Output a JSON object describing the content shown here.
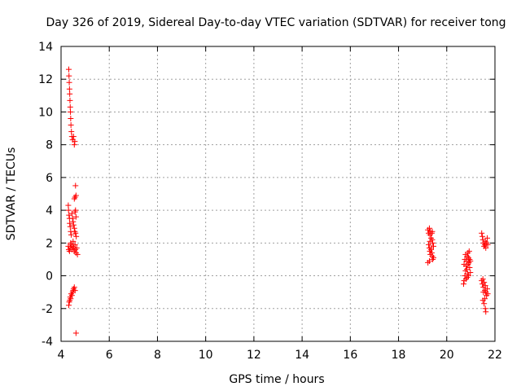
{
  "chart_data": {
    "type": "scatter",
    "title": "Day 326 of 2019, Sidereal Day-to-day VTEC variation (SDTVAR) for receiver tong",
    "xlabel": "GPS time / hours",
    "ylabel": "SDTVAR / TECUs",
    "xlim": [
      4,
      22
    ],
    "ylim": [
      -4,
      14
    ],
    "x_ticks": [
      4,
      6,
      8,
      10,
      12,
      14,
      16,
      18,
      20,
      22
    ],
    "y_ticks": [
      -4,
      -2,
      0,
      2,
      4,
      6,
      8,
      10,
      12,
      14
    ],
    "grid": true,
    "marker": "+",
    "marker_color": "#ff0000",
    "series": [
      {
        "name": "SDTVAR",
        "points": [
          [
            4.32,
            12.6
          ],
          [
            4.33,
            12.2
          ],
          [
            4.34,
            11.8
          ],
          [
            4.35,
            11.4
          ],
          [
            4.36,
            11.1
          ],
          [
            4.37,
            10.7
          ],
          [
            4.38,
            10.3
          ],
          [
            4.39,
            10.0
          ],
          [
            4.4,
            9.6
          ],
          [
            4.41,
            9.2
          ],
          [
            4.43,
            8.8
          ],
          [
            4.45,
            8.5
          ],
          [
            4.48,
            8.3
          ],
          [
            4.52,
            8.5
          ],
          [
            4.55,
            8.0
          ],
          [
            4.57,
            8.2
          ],
          [
            4.6,
            5.5
          ],
          [
            4.58,
            4.8
          ],
          [
            4.62,
            4.9
          ],
          [
            4.55,
            4.7
          ],
          [
            4.3,
            4.3
          ],
          [
            4.31,
            4.0
          ],
          [
            4.33,
            3.7
          ],
          [
            4.35,
            3.5
          ],
          [
            4.36,
            3.2
          ],
          [
            4.38,
            3.0
          ],
          [
            4.4,
            2.7
          ],
          [
            4.42,
            2.5
          ],
          [
            4.45,
            3.8
          ],
          [
            4.48,
            3.5
          ],
          [
            4.5,
            3.3
          ],
          [
            4.52,
            3.1
          ],
          [
            4.55,
            2.9
          ],
          [
            4.58,
            3.9
          ],
          [
            4.6,
            4.0
          ],
          [
            4.62,
            3.6
          ],
          [
            4.57,
            2.7
          ],
          [
            4.6,
            2.6
          ],
          [
            4.63,
            2.4
          ],
          [
            4.3,
            1.8
          ],
          [
            4.32,
            1.6
          ],
          [
            4.35,
            1.5
          ],
          [
            4.38,
            1.7
          ],
          [
            4.4,
            2.0
          ],
          [
            4.42,
            1.9
          ],
          [
            4.45,
            1.6
          ],
          [
            4.48,
            1.8
          ],
          [
            4.5,
            2.1
          ],
          [
            4.52,
            1.7
          ],
          [
            4.55,
            1.5
          ],
          [
            4.58,
            1.9
          ],
          [
            4.6,
            1.6
          ],
          [
            4.62,
            1.4
          ],
          [
            4.65,
            1.7
          ],
          [
            4.68,
            1.3
          ],
          [
            4.32,
            -1.8
          ],
          [
            4.34,
            -1.6
          ],
          [
            4.36,
            -1.5
          ],
          [
            4.38,
            -1.3
          ],
          [
            4.4,
            -1.4
          ],
          [
            4.42,
            -1.1
          ],
          [
            4.45,
            -1.2
          ],
          [
            4.48,
            -1.0
          ],
          [
            4.5,
            -0.9
          ],
          [
            4.52,
            -0.8
          ],
          [
            4.55,
            -0.7
          ],
          [
            4.58,
            -0.9
          ],
          [
            4.62,
            -3.5
          ],
          [
            19.22,
            2.8
          ],
          [
            19.25,
            2.6
          ],
          [
            19.28,
            2.9
          ],
          [
            19.3,
            2.5
          ],
          [
            19.32,
            2.7
          ],
          [
            19.35,
            2.3
          ],
          [
            19.38,
            2.6
          ],
          [
            19.4,
            2.2
          ],
          [
            19.42,
            2.0
          ],
          [
            19.45,
            1.8
          ],
          [
            19.25,
            1.9
          ],
          [
            19.28,
            1.7
          ],
          [
            19.3,
            1.5
          ],
          [
            19.32,
            1.3
          ],
          [
            19.35,
            1.6
          ],
          [
            19.38,
            1.4
          ],
          [
            19.4,
            1.2
          ],
          [
            19.42,
            1.0
          ],
          [
            19.45,
            1.1
          ],
          [
            19.22,
            0.8
          ],
          [
            19.28,
            0.9
          ],
          [
            19.35,
            1.7
          ],
          [
            19.4,
            2.7
          ],
          [
            19.3,
            2.1
          ],
          [
            20.7,
            -0.5
          ],
          [
            20.72,
            -0.3
          ],
          [
            20.75,
            0.0
          ],
          [
            20.78,
            0.3
          ],
          [
            20.8,
            0.6
          ],
          [
            20.82,
            0.9
          ],
          [
            20.85,
            1.2
          ],
          [
            20.88,
            1.4
          ],
          [
            20.9,
            1.1
          ],
          [
            20.92,
            0.8
          ],
          [
            20.95,
            0.5
          ],
          [
            20.98,
            0.2
          ],
          [
            20.75,
            1.0
          ],
          [
            20.78,
            1.3
          ],
          [
            20.8,
            -0.2
          ],
          [
            20.83,
            0.4
          ],
          [
            20.85,
            -0.1
          ],
          [
            20.88,
            0.7
          ],
          [
            20.9,
            0.0
          ],
          [
            20.93,
            1.5
          ],
          [
            20.95,
            1.0
          ],
          [
            20.72,
            0.7
          ],
          [
            20.98,
            0.9
          ],
          [
            20.86,
            0.1
          ],
          [
            21.45,
            2.6
          ],
          [
            21.48,
            2.4
          ],
          [
            21.5,
            2.2
          ],
          [
            21.52,
            2.0
          ],
          [
            21.55,
            1.8
          ],
          [
            21.58,
            1.9
          ],
          [
            21.6,
            2.1
          ],
          [
            21.62,
            1.7
          ],
          [
            21.65,
            2.0
          ],
          [
            21.68,
            2.3
          ],
          [
            21.7,
            1.9
          ],
          [
            21.45,
            -0.3
          ],
          [
            21.48,
            -0.5
          ],
          [
            21.5,
            -0.2
          ],
          [
            21.52,
            -0.7
          ],
          [
            21.55,
            -0.4
          ],
          [
            21.58,
            -0.9
          ],
          [
            21.6,
            -0.6
          ],
          [
            21.62,
            -1.0
          ],
          [
            21.65,
            -1.2
          ],
          [
            21.68,
            -0.8
          ],
          [
            21.7,
            -1.1
          ],
          [
            21.5,
            -1.5
          ],
          [
            21.55,
            -1.7
          ],
          [
            21.58,
            -1.4
          ],
          [
            21.6,
            -2.0
          ],
          [
            21.62,
            -2.2
          ],
          [
            21.52,
            -1.0
          ]
        ]
      }
    ]
  }
}
